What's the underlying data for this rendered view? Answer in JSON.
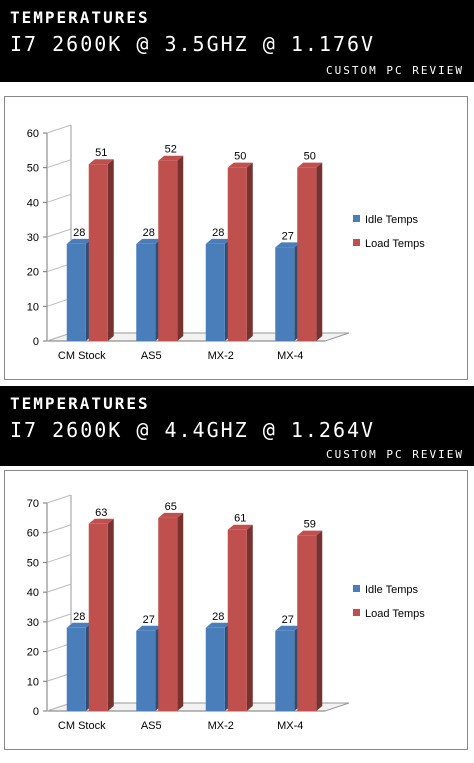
{
  "panels": [
    {
      "banner": {
        "title": "TEMPERATURES",
        "subtitle": "I7 2600K @ 3.5GHZ @ 1.176V",
        "source": "CUSTOM PC REVIEW"
      }
    },
    {
      "banner": {
        "title": "TEMPERATURES",
        "subtitle": "I7 2600K @ 4.4GHZ @ 1.264V",
        "source": "CUSTOM PC REVIEW"
      }
    }
  ],
  "colors": {
    "idle": "#4a7ebb",
    "load": "#c0504d",
    "banner_bg": "#000000"
  },
  "chart_data": [
    {
      "type": "bar",
      "categories": [
        "CM Stock",
        "AS5",
        "MX-2",
        "MX-4"
      ],
      "series": [
        {
          "name": "Idle Temps",
          "values": [
            28,
            28,
            28,
            27
          ]
        },
        {
          "name": "Load Temps",
          "values": [
            51,
            52,
            50,
            50
          ]
        }
      ],
      "ylim": [
        0,
        60
      ],
      "yticks": [
        0,
        10,
        20,
        30,
        40,
        50,
        60
      ],
      "grid": false,
      "legend": "right"
    },
    {
      "type": "bar",
      "categories": [
        "CM Stock",
        "AS5",
        "MX-2",
        "MX-4"
      ],
      "series": [
        {
          "name": "Idle Temps",
          "values": [
            28,
            27,
            28,
            27
          ]
        },
        {
          "name": "Load Temps",
          "values": [
            63,
            65,
            61,
            59
          ]
        }
      ],
      "ylim": [
        0,
        70
      ],
      "yticks": [
        0,
        10,
        20,
        30,
        40,
        50,
        60,
        70
      ],
      "grid": false,
      "legend": "right"
    }
  ]
}
